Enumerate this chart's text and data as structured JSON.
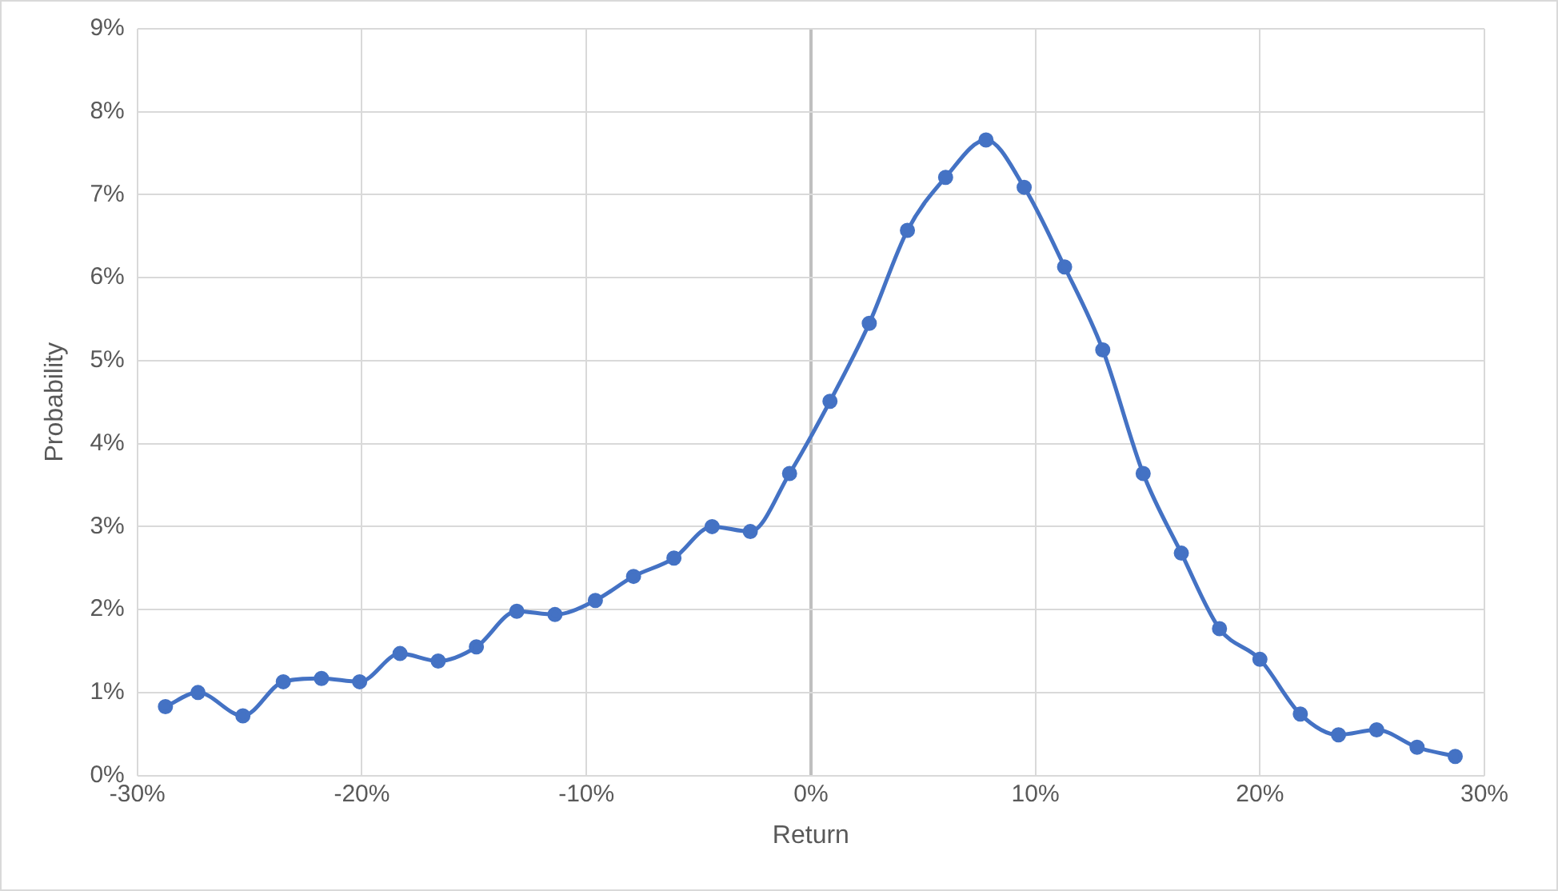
{
  "chart_data": {
    "type": "line",
    "xlabel": "Return",
    "ylabel": "Probability",
    "x": [
      -28.75,
      -27.3,
      -25.3,
      -23.5,
      -21.8,
      -20.1,
      -18.3,
      -16.6,
      -14.9,
      -13.1,
      -11.4,
      -9.6,
      -7.9,
      -6.1,
      -4.4,
      -2.7,
      -0.95,
      0.85,
      2.6,
      4.3,
      6.0,
      7.8,
      9.5,
      11.3,
      13.0,
      14.8,
      16.5,
      18.2,
      20.0,
      21.8,
      23.5,
      25.2,
      27.0,
      28.7
    ],
    "series": [
      {
        "color": "#4472c4",
        "values": [
          0.83,
          1.0,
          0.72,
          1.13,
          1.17,
          1.13,
          1.47,
          1.38,
          1.55,
          1.98,
          1.94,
          2.11,
          2.4,
          2.62,
          3.0,
          2.94,
          3.64,
          4.51,
          5.45,
          6.57,
          7.21,
          7.66,
          7.09,
          6.13,
          5.13,
          3.64,
          2.68,
          1.77,
          1.4,
          0.74,
          0.49,
          0.55,
          0.34,
          0.23
        ]
      }
    ],
    "xlim": [
      -30,
      30
    ],
    "xticks": [
      {
        "value": -30,
        "label": "-30%"
      },
      {
        "value": -20,
        "label": "-20%"
      },
      {
        "value": -10,
        "label": "-10%"
      },
      {
        "value": 0,
        "label": "0%"
      },
      {
        "value": 10,
        "label": "10%"
      },
      {
        "value": 20,
        "label": "20%"
      },
      {
        "value": 30,
        "label": "30%"
      }
    ],
    "ylim": [
      0,
      9
    ],
    "yticks": [
      {
        "value": 0,
        "label": "0%"
      },
      {
        "value": 1,
        "label": "1%"
      },
      {
        "value": 2,
        "label": "2%"
      },
      {
        "value": 3,
        "label": "3%"
      },
      {
        "value": 4,
        "label": "4%"
      },
      {
        "value": 5,
        "label": "5%"
      },
      {
        "value": 6,
        "label": "6%"
      },
      {
        "value": 7,
        "label": "7%"
      },
      {
        "value": 8,
        "label": "8%"
      },
      {
        "value": 9,
        "label": "9%"
      }
    ],
    "grid": true,
    "legend": false,
    "marker": "circle",
    "line_style": "solid"
  }
}
